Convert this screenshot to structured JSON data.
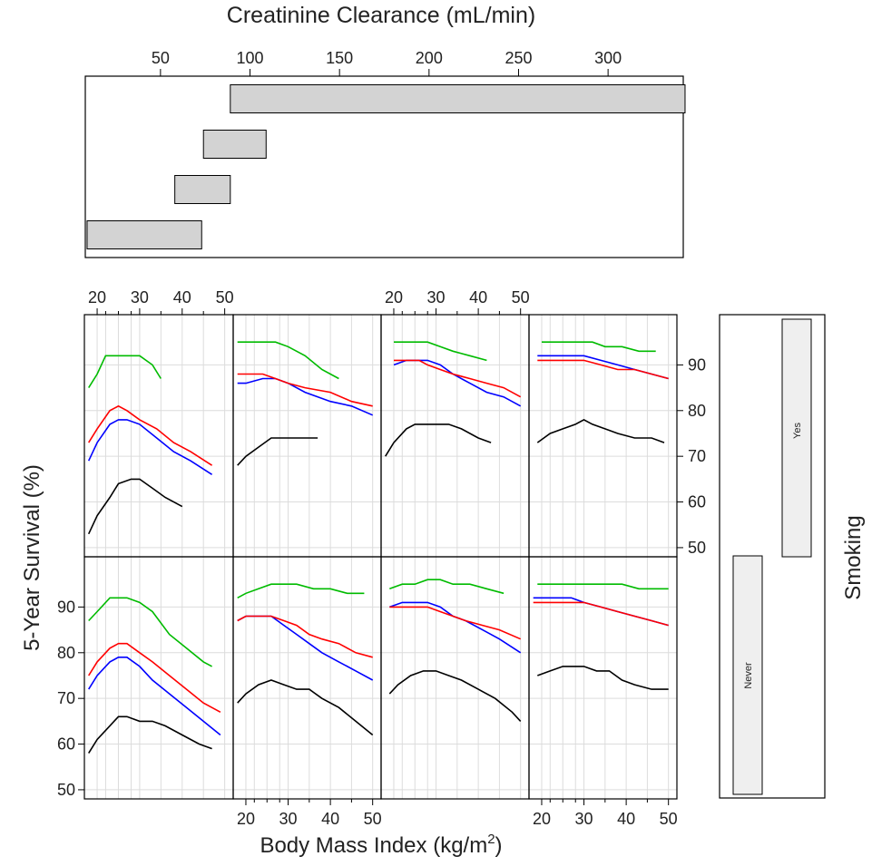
{
  "chart_data": {
    "type": "line",
    "top_panel": {
      "type": "range-bar",
      "title": "Creatinine Clearance (mL/min)",
      "ticks": [
        50,
        100,
        150,
        200,
        250,
        300
      ],
      "xlim": [
        8,
        342
      ],
      "bars": [
        {
          "from": 9,
          "to": 73,
          "label": "bottom"
        },
        {
          "from": 58,
          "to": 89,
          "label": "second"
        },
        {
          "from": 74,
          "to": 109,
          "label": "third"
        },
        {
          "from": 89,
          "to": 343,
          "label": "top"
        }
      ],
      "bar_color": "#d3d3d3"
    },
    "xlabel": "Body Mass Index (kg/m²)",
    "xlabel_main": "Body Mass Index (kg/m",
    "xlabel_sup": "2",
    "xlabel_close": ")",
    "ylabel": "5-Year Survival (%)",
    "x_ticks": [
      20,
      30,
      40,
      50
    ],
    "xlim": [
      17,
      52
    ],
    "ylim": [
      48,
      101
    ],
    "y_ticks": [
      50,
      60,
      70,
      80,
      90
    ],
    "grid": true,
    "strip": {
      "title": "Smoking",
      "levels": [
        "Never",
        "Yes"
      ]
    },
    "series_colors": [
      "#000000",
      "#0000ff",
      "#ff0000",
      "#00bb00"
    ],
    "panels": [
      {
        "row": 0,
        "col": 0,
        "series": [
          {
            "color": "#000000",
            "x": [
              18,
              20,
              23,
              25,
              28,
              30,
              33,
              36,
              40
            ],
            "y": [
              53,
              57,
              61,
              64,
              65,
              65,
              63,
              61,
              59
            ]
          },
          {
            "color": "#0000ff",
            "x": [
              18,
              20,
              23,
              25,
              27,
              30,
              34,
              38,
              42,
              47
            ],
            "y": [
              69,
              73,
              77,
              78,
              78,
              77,
              74,
              71,
              69,
              66
            ]
          },
          {
            "color": "#ff0000",
            "x": [
              18,
              20,
              23,
              25,
              27,
              30,
              34,
              38,
              42,
              47
            ],
            "y": [
              73,
              76,
              80,
              81,
              80,
              78,
              76,
              73,
              71,
              68
            ]
          },
          {
            "color": "#00bb00",
            "x": [
              18,
              20,
              22,
              24,
              26,
              28,
              30,
              33,
              35
            ],
            "y": [
              85,
              88,
              92,
              92,
              92,
              92,
              92,
              90,
              87
            ]
          }
        ]
      },
      {
        "row": 0,
        "col": 1,
        "series": [
          {
            "color": "#000000",
            "x": [
              18,
              20,
              23,
              26,
              28,
              30,
              33,
              37
            ],
            "y": [
              68,
              70,
              72,
              74,
              74,
              74,
              74,
              74
            ]
          },
          {
            "color": "#0000ff",
            "x": [
              18,
              20,
              24,
              27,
              30,
              34,
              40,
              45,
              50
            ],
            "y": [
              86,
              86,
              87,
              87,
              86,
              84,
              82,
              81,
              79
            ]
          },
          {
            "color": "#ff0000",
            "x": [
              18,
              20,
              24,
              27,
              30,
              34,
              40,
              45,
              50
            ],
            "y": [
              88,
              88,
              88,
              87,
              86,
              85,
              84,
              82,
              81
            ]
          },
          {
            "color": "#00bb00",
            "x": [
              18,
              20,
              24,
              27,
              30,
              34,
              38,
              42
            ],
            "y": [
              95,
              95,
              95,
              95,
              94,
              92,
              89,
              87
            ]
          }
        ]
      },
      {
        "row": 0,
        "col": 2,
        "series": [
          {
            "color": "#000000",
            "x": [
              18,
              20,
              23,
              25,
              28,
              30,
              33,
              36,
              40,
              43
            ],
            "y": [
              70,
              73,
              76,
              77,
              77,
              77,
              77,
              76,
              74,
              73
            ]
          },
          {
            "color": "#0000ff",
            "x": [
              20,
              23,
              26,
              28,
              31,
              34,
              38,
              42,
              46,
              50
            ],
            "y": [
              90,
              91,
              91,
              91,
              90,
              88,
              86,
              84,
              83,
              81
            ]
          },
          {
            "color": "#ff0000",
            "x": [
              20,
              23,
              26,
              28,
              31,
              34,
              38,
              42,
              46,
              50
            ],
            "y": [
              91,
              91,
              91,
              90,
              89,
              88,
              87,
              86,
              85,
              83
            ]
          },
          {
            "color": "#00bb00",
            "x": [
              20,
              23,
              26,
              28,
              31,
              34,
              38,
              42
            ],
            "y": [
              95,
              95,
              95,
              95,
              94,
              93,
              92,
              91
            ]
          }
        ]
      },
      {
        "row": 0,
        "col": 3,
        "series": [
          {
            "color": "#000000",
            "x": [
              19,
              22,
              25,
              28,
              30,
              32,
              35,
              38,
              42,
              46,
              49
            ],
            "y": [
              73,
              75,
              76,
              77,
              78,
              77,
              76,
              75,
              74,
              74,
              73
            ]
          },
          {
            "color": "#0000ff",
            "x": [
              19,
              22,
              25,
              28,
              30,
              34,
              38,
              42,
              46,
              50
            ],
            "y": [
              92,
              92,
              92,
              92,
              92,
              91,
              90,
              89,
              88,
              87
            ]
          },
          {
            "color": "#ff0000",
            "x": [
              19,
              22,
              25,
              28,
              30,
              34,
              38,
              42,
              46,
              50
            ],
            "y": [
              91,
              91,
              91,
              91,
              91,
              90,
              89,
              89,
              88,
              87
            ]
          },
          {
            "color": "#00bb00",
            "x": [
              20,
              23,
              26,
              29,
              32,
              35,
              39,
              43,
              47
            ],
            "y": [
              95,
              95,
              95,
              95,
              95,
              94,
              94,
              93,
              93
            ]
          }
        ]
      },
      {
        "row": 1,
        "col": 0,
        "series": [
          {
            "color": "#000000",
            "x": [
              18,
              20,
              23,
              25,
              27,
              30,
              33,
              36,
              40,
              44,
              47
            ],
            "y": [
              58,
              61,
              64,
              66,
              66,
              65,
              65,
              64,
              62,
              60,
              59
            ]
          },
          {
            "color": "#0000ff",
            "x": [
              18,
              20,
              23,
              25,
              27,
              30,
              33,
              37,
              41,
              45,
              49
            ],
            "y": [
              72,
              75,
              78,
              79,
              79,
              77,
              74,
              71,
              68,
              65,
              62
            ]
          },
          {
            "color": "#ff0000",
            "x": [
              18,
              20,
              23,
              25,
              27,
              30,
              33,
              37,
              41,
              45,
              49
            ],
            "y": [
              75,
              78,
              81,
              82,
              82,
              80,
              78,
              75,
              72,
              69,
              67
            ]
          },
          {
            "color": "#00bb00",
            "x": [
              18,
              20,
              23,
              25,
              27,
              30,
              33,
              37,
              41,
              45,
              47
            ],
            "y": [
              87,
              89,
              92,
              92,
              92,
              91,
              89,
              84,
              81,
              78,
              77
            ]
          }
        ]
      },
      {
        "row": 1,
        "col": 1,
        "series": [
          {
            "color": "#000000",
            "x": [
              18,
              20,
              23,
              26,
              29,
              32,
              35,
              38,
              42,
              46,
              50
            ],
            "y": [
              69,
              71,
              73,
              74,
              73,
              72,
              72,
              70,
              68,
              65,
              62
            ]
          },
          {
            "color": "#0000ff",
            "x": [
              18,
              20,
              23,
              26,
              29,
              32,
              35,
              38,
              42,
              46,
              50
            ],
            "y": [
              87,
              88,
              88,
              88,
              86,
              84,
              82,
              80,
              78,
              76,
              74
            ]
          },
          {
            "color": "#ff0000",
            "x": [
              18,
              20,
              23,
              26,
              29,
              32,
              35,
              38,
              42,
              46,
              50
            ],
            "y": [
              87,
              88,
              88,
              88,
              87,
              86,
              84,
              83,
              82,
              80,
              79
            ]
          },
          {
            "color": "#00bb00",
            "x": [
              18,
              20,
              23,
              26,
              29,
              32,
              36,
              40,
              44,
              48
            ],
            "y": [
              92,
              93,
              94,
              95,
              95,
              95,
              94,
              94,
              93,
              93
            ]
          }
        ]
      },
      {
        "row": 1,
        "col": 2,
        "series": [
          {
            "color": "#000000",
            "x": [
              19,
              21,
              24,
              27,
              30,
              33,
              36,
              40,
              44,
              48,
              50
            ],
            "y": [
              71,
              73,
              75,
              76,
              76,
              75,
              74,
              72,
              70,
              67,
              65
            ]
          },
          {
            "color": "#0000ff",
            "x": [
              19,
              22,
              25,
              28,
              31,
              34,
              37,
              41,
              45,
              50
            ],
            "y": [
              90,
              91,
              91,
              91,
              90,
              88,
              87,
              85,
              83,
              80
            ]
          },
          {
            "color": "#ff0000",
            "x": [
              19,
              22,
              25,
              28,
              31,
              34,
              37,
              41,
              45,
              50
            ],
            "y": [
              90,
              90,
              90,
              90,
              89,
              88,
              87,
              86,
              85,
              83
            ]
          },
          {
            "color": "#00bb00",
            "x": [
              19,
              22,
              25,
              28,
              31,
              34,
              38,
              42,
              46
            ],
            "y": [
              94,
              95,
              95,
              96,
              96,
              95,
              95,
              94,
              93
            ]
          }
        ]
      },
      {
        "row": 1,
        "col": 3,
        "series": [
          {
            "color": "#000000",
            "x": [
              19,
              22,
              25,
              28,
              30,
              33,
              36,
              39,
              42,
              46,
              50
            ],
            "y": [
              75,
              76,
              77,
              77,
              77,
              76,
              76,
              74,
              73,
              72,
              72
            ]
          },
          {
            "color": "#0000ff",
            "x": [
              18,
              21,
              24,
              27,
              30,
              34,
              38,
              42,
              46,
              50
            ],
            "y": [
              92,
              92,
              92,
              92,
              91,
              90,
              89,
              88,
              87,
              86
            ]
          },
          {
            "color": "#ff0000",
            "x": [
              18,
              21,
              24,
              27,
              30,
              34,
              38,
              42,
              46,
              50
            ],
            "y": [
              91,
              91,
              91,
              91,
              91,
              90,
              89,
              88,
              87,
              86
            ]
          },
          {
            "color": "#00bb00",
            "x": [
              19,
              22,
              25,
              28,
              31,
              35,
              39,
              43,
              47,
              50
            ],
            "y": [
              95,
              95,
              95,
              95,
              95,
              95,
              95,
              94,
              94,
              94
            ]
          }
        ]
      }
    ]
  }
}
